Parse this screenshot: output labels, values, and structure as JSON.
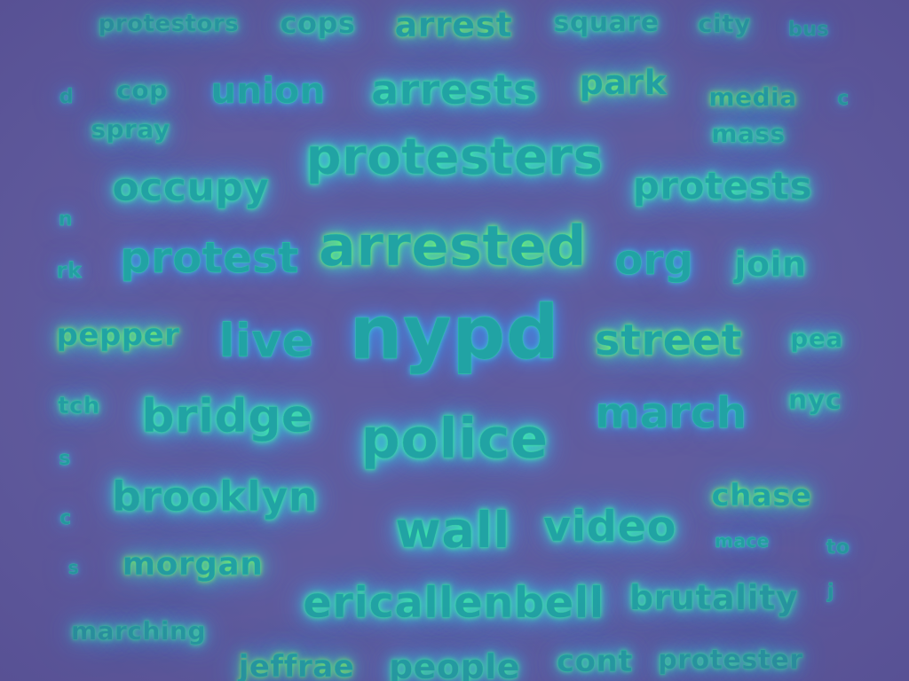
{
  "colors": {
    "background": "#615c9e",
    "word": "#21a3a4",
    "glow_inner": "#3ff0a0",
    "glow_outer": "#4a88e8"
  },
  "words": [
    {
      "name": "protestors",
      "text": "protestors"
    },
    {
      "name": "cops",
      "text": "cops"
    },
    {
      "name": "arrest",
      "text": "arrest"
    },
    {
      "name": "square",
      "text": "square"
    },
    {
      "name": "city",
      "text": "city"
    },
    {
      "name": "bus",
      "text": "bus"
    },
    {
      "name": "d",
      "text": "d"
    },
    {
      "name": "cop",
      "text": "cop"
    },
    {
      "name": "spray",
      "text": "spray"
    },
    {
      "name": "union",
      "text": "union"
    },
    {
      "name": "arrests",
      "text": "arrests"
    },
    {
      "name": "park",
      "text": "park"
    },
    {
      "name": "media",
      "text": "media"
    },
    {
      "name": "mass",
      "text": "mass"
    },
    {
      "name": "c-right",
      "text": "c"
    },
    {
      "name": "protesters",
      "text": "protesters"
    },
    {
      "name": "occupy",
      "text": "occupy"
    },
    {
      "name": "protests",
      "text": "protests"
    },
    {
      "name": "n",
      "text": "n"
    },
    {
      "name": "protest",
      "text": "protest"
    },
    {
      "name": "arrested",
      "text": "arrested"
    },
    {
      "name": "org",
      "text": "org"
    },
    {
      "name": "join",
      "text": "join"
    },
    {
      "name": "rk",
      "text": "rk"
    },
    {
      "name": "pepper",
      "text": "pepper"
    },
    {
      "name": "live",
      "text": "live"
    },
    {
      "name": "nypd",
      "text": "nypd"
    },
    {
      "name": "street",
      "text": "street"
    },
    {
      "name": "pea",
      "text": "pea"
    },
    {
      "name": "tch",
      "text": "tch"
    },
    {
      "name": "bridge",
      "text": "bridge"
    },
    {
      "name": "police",
      "text": "police"
    },
    {
      "name": "march",
      "text": "march"
    },
    {
      "name": "nyc",
      "text": "nyc"
    },
    {
      "name": "s-left",
      "text": "s"
    },
    {
      "name": "brooklyn",
      "text": "brooklyn"
    },
    {
      "name": "chase",
      "text": "chase"
    },
    {
      "name": "c-left",
      "text": "c"
    },
    {
      "name": "wall",
      "text": "wall"
    },
    {
      "name": "video",
      "text": "video"
    },
    {
      "name": "mace",
      "text": "mace"
    },
    {
      "name": "to",
      "text": "to"
    },
    {
      "name": "s-left2",
      "text": "s"
    },
    {
      "name": "morgan",
      "text": "morgan"
    },
    {
      "name": "ericallenbell",
      "text": "ericallenbell"
    },
    {
      "name": "brutality",
      "text": "brutality"
    },
    {
      "name": "j-right",
      "text": "j"
    },
    {
      "name": "marching",
      "text": "marching"
    },
    {
      "name": "jeffrae",
      "text": "jeffrae"
    },
    {
      "name": "people",
      "text": "people"
    },
    {
      "name": "cont",
      "text": "cont"
    },
    {
      "name": "protester",
      "text": "protester"
    }
  ]
}
